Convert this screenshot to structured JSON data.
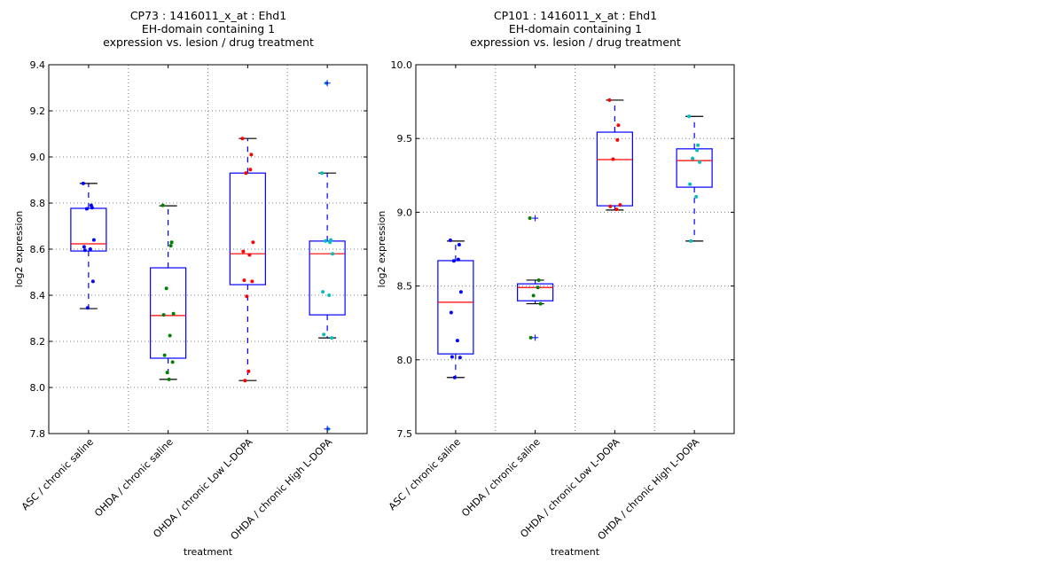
{
  "chart_data": [
    {
      "type": "box",
      "title": [
        "CP73 : 1416011_x_at : Ehd1",
        "EH-domain containing 1",
        "expression vs. lesion / drug treatment"
      ],
      "xlabel": "treatment",
      "ylabel": "log2 expression",
      "ylim": [
        7.8,
        9.4
      ],
      "yticks": [
        "7.8",
        "8.0",
        "8.2",
        "8.4",
        "8.6",
        "8.8",
        "9.0",
        "9.2",
        "9.4"
      ],
      "ytick_values": [
        7.8,
        8.0,
        8.2,
        8.4,
        8.6,
        8.8,
        9.0,
        9.2,
        9.4
      ],
      "grid": true,
      "categories": [
        "ASC / chronic saline",
        "OHDA / chronic saline",
        "OHDA / chronic Low L-DOPA",
        "OHDA / chronic High L-DOPA"
      ],
      "series": [
        {
          "name": "ASC / chronic saline",
          "color": "#0000ff",
          "whisker_low": 8.342,
          "q1": 8.592,
          "median": 8.623,
          "q3": 8.777,
          "whisker_high": 8.885,
          "outliers": [],
          "points": [
            8.885,
            8.78,
            8.79,
            8.775,
            8.64,
            8.61,
            8.6,
            8.595,
            8.46,
            8.345
          ]
        },
        {
          "name": "OHDA / chronic saline",
          "color": "#008000",
          "whisker_low": 8.035,
          "q1": 8.127,
          "median": 8.312,
          "q3": 8.519,
          "whisker_high": 8.788,
          "outliers": [],
          "points": [
            8.79,
            8.63,
            8.615,
            8.43,
            8.32,
            8.315,
            8.225,
            8.14,
            8.11,
            8.065,
            8.035
          ]
        },
        {
          "name": "OHDA / chronic Low L-DOPA",
          "color": "#ff0000",
          "whisker_low": 8.03,
          "q1": 8.446,
          "median": 8.58,
          "q3": 8.93,
          "whisker_high": 9.08,
          "outliers": [],
          "points": [
            9.08,
            9.01,
            8.945,
            8.93,
            8.63,
            8.59,
            8.575,
            8.465,
            8.46,
            8.395,
            8.07,
            8.03
          ]
        },
        {
          "name": "OHDA / chronic High L-DOPA",
          "color": "#00bfbf",
          "whisker_low": 8.215,
          "q1": 8.315,
          "median": 8.58,
          "q3": 8.635,
          "whisker_high": 8.93,
          "outliers": [
            9.32,
            7.82
          ],
          "points": [
            8.93,
            8.64,
            8.63,
            8.635,
            8.58,
            8.415,
            8.4,
            8.23,
            8.215,
            9.32,
            7.82
          ]
        }
      ]
    },
    {
      "type": "box",
      "title": [
        "CP101 : 1416011_x_at : Ehd1",
        "EH-domain containing 1",
        "expression vs. lesion / drug treatment"
      ],
      "xlabel": "treatment",
      "ylabel": "log2 expression",
      "ylim": [
        7.5,
        10.0
      ],
      "yticks": [
        "7.5",
        "8.0",
        "8.5",
        "9.0",
        "9.5",
        "10.0"
      ],
      "ytick_values": [
        7.5,
        8.0,
        8.5,
        9.0,
        9.5,
        10.0
      ],
      "grid": true,
      "categories": [
        "ASC / chronic saline",
        "OHDA / chronic saline",
        "OHDA / chronic Low L-DOPA",
        "OHDA / chronic High L-DOPA"
      ],
      "series": [
        {
          "name": "ASC / chronic saline",
          "color": "#0000ff",
          "whisker_low": 7.88,
          "q1": 8.04,
          "median": 8.39,
          "q3": 8.672,
          "whisker_high": 8.805,
          "outliers": [],
          "points": [
            8.81,
            8.78,
            8.68,
            8.67,
            8.46,
            8.32,
            8.13,
            8.02,
            8.015,
            7.88
          ]
        },
        {
          "name": "OHDA / chronic saline",
          "color": "#008000",
          "whisker_low": 8.38,
          "q1": 8.4,
          "median": 8.49,
          "q3": 8.515,
          "whisker_high": 8.54,
          "outliers": [
            8.96,
            8.15
          ],
          "points": [
            8.96,
            8.54,
            8.49,
            8.435,
            8.38,
            8.15
          ]
        },
        {
          "name": "OHDA / chronic Low L-DOPA",
          "color": "#ff0000",
          "whisker_low": 9.015,
          "q1": 9.044,
          "median": 9.357,
          "q3": 9.543,
          "whisker_high": 9.76,
          "outliers": [],
          "points": [
            9.76,
            9.59,
            9.49,
            9.36,
            9.05,
            9.04,
            9.02
          ]
        },
        {
          "name": "OHDA / chronic High L-DOPA",
          "color": "#00bfbf",
          "whisker_low": 8.805,
          "q1": 9.17,
          "median": 9.35,
          "q3": 9.43,
          "whisker_high": 9.65,
          "outliers": [],
          "points": [
            9.65,
            9.455,
            9.42,
            9.365,
            9.34,
            9.19,
            9.105,
            8.805
          ]
        }
      ]
    }
  ]
}
